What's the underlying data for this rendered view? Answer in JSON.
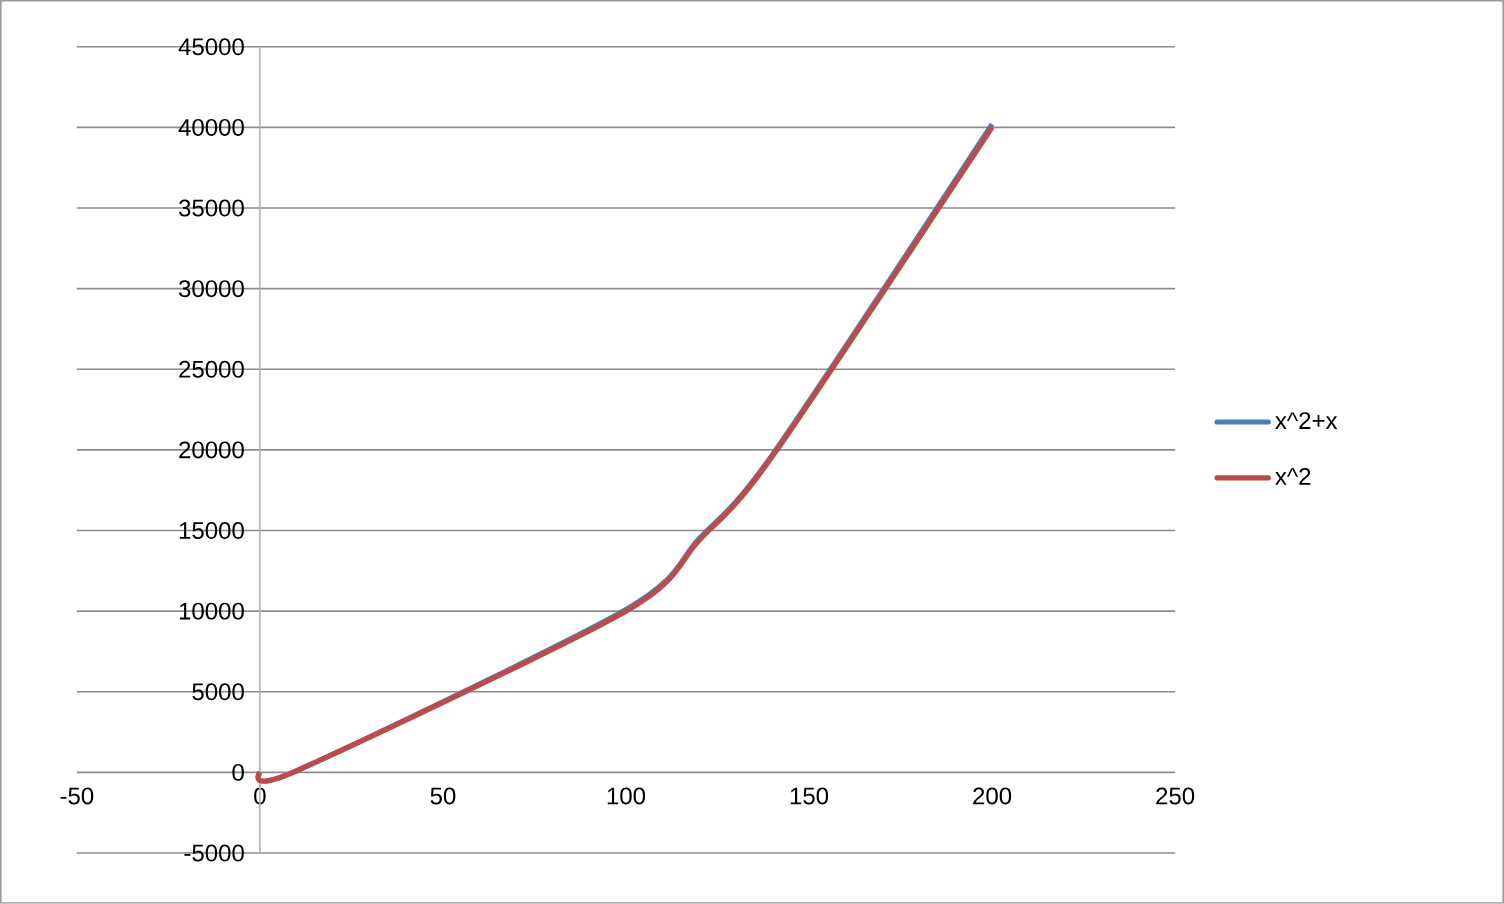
{
  "chart_data": {
    "type": "line",
    "xlim": [
      -50,
      250
    ],
    "xticks": [
      -50,
      0,
      50,
      100,
      150,
      200,
      250
    ],
    "ylim": [
      -5000,
      45000
    ],
    "yticks": [
      -5000,
      0,
      5000,
      10000,
      15000,
      20000,
      25000,
      30000,
      35000,
      40000,
      45000
    ],
    "grid": "y",
    "legend": "right",
    "marker": "none",
    "line_style": "solid",
    "series": [
      {
        "name": "x^2+x",
        "color": "#4a7ebb",
        "x": [
          0,
          10,
          100,
          120,
          140,
          200
        ],
        "values": [
          0,
          100,
          10100,
          14500,
          19700,
          40200
        ]
      },
      {
        "name": "x^2",
        "color": "#be4b48",
        "x": [
          0,
          10,
          100,
          120,
          140,
          200
        ],
        "values": [
          0,
          100,
          10000,
          14400,
          19600,
          40000
        ]
      }
    ]
  }
}
